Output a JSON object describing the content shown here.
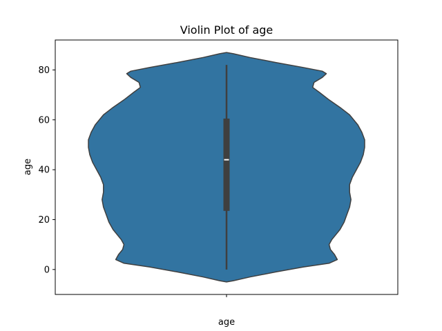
{
  "chart_data": {
    "type": "violin",
    "title": "Violin Plot of age",
    "xlabel": "age",
    "ylabel": "age",
    "categories": [
      "age"
    ],
    "ylim": [
      -10,
      92
    ],
    "yticks": [
      0,
      20,
      40,
      60,
      80
    ],
    "grid": false,
    "legend": "none",
    "fill_color": "#3274a1",
    "edge_color": "#3f3f3f",
    "box_color": "#3f3f3f",
    "median_color": "#ffffff",
    "summary": {
      "min": 0,
      "q1": 23.5,
      "median": 44,
      "q3": 60.5,
      "max": 82
    },
    "density_profile": [
      {
        "age": -5,
        "half_width": 0
      },
      {
        "age": -4.5,
        "half_width": 0.05
      },
      {
        "age": -3,
        "half_width": 0.17
      },
      {
        "age": -1,
        "half_width": 0.36
      },
      {
        "age": 1,
        "half_width": 0.56
      },
      {
        "age": 2.5,
        "half_width": 0.75
      },
      {
        "age": 4,
        "half_width": 0.81
      },
      {
        "age": 6,
        "half_width": 0.79
      },
      {
        "age": 8,
        "half_width": 0.76
      },
      {
        "age": 10,
        "half_width": 0.75
      },
      {
        "age": 12,
        "half_width": 0.77
      },
      {
        "age": 14,
        "half_width": 0.8
      },
      {
        "age": 16,
        "half_width": 0.83
      },
      {
        "age": 19,
        "half_width": 0.86
      },
      {
        "age": 22,
        "half_width": 0.88
      },
      {
        "age": 25,
        "half_width": 0.9
      },
      {
        "age": 28,
        "half_width": 0.91
      },
      {
        "age": 31,
        "half_width": 0.9
      },
      {
        "age": 34,
        "half_width": 0.9
      },
      {
        "age": 37,
        "half_width": 0.92
      },
      {
        "age": 40,
        "half_width": 0.95
      },
      {
        "age": 43,
        "half_width": 0.98
      },
      {
        "age": 46,
        "half_width": 1.0
      },
      {
        "age": 49,
        "half_width": 1.01
      },
      {
        "age": 52,
        "half_width": 1.01
      },
      {
        "age": 55,
        "half_width": 0.99
      },
      {
        "age": 58,
        "half_width": 0.96
      },
      {
        "age": 62,
        "half_width": 0.9
      },
      {
        "age": 65,
        "half_width": 0.83
      },
      {
        "age": 68,
        "half_width": 0.75
      },
      {
        "age": 71,
        "half_width": 0.68
      },
      {
        "age": 73,
        "half_width": 0.63
      },
      {
        "age": 75,
        "half_width": 0.64
      },
      {
        "age": 77,
        "half_width": 0.7
      },
      {
        "age": 78.5,
        "half_width": 0.73
      },
      {
        "age": 79.5,
        "half_width": 0.7
      },
      {
        "age": 81,
        "half_width": 0.56
      },
      {
        "age": 83,
        "half_width": 0.36
      },
      {
        "age": 85,
        "half_width": 0.17
      },
      {
        "age": 86.5,
        "half_width": 0.05
      },
      {
        "age": 87,
        "half_width": 0
      }
    ]
  }
}
